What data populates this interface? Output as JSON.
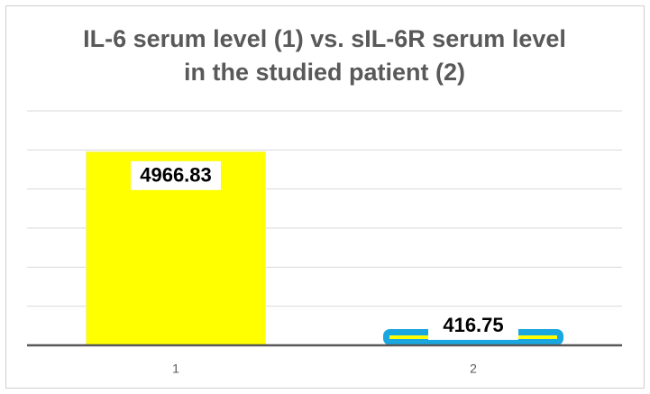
{
  "chart_data": {
    "type": "bar",
    "title": [
      "IL-6 serum level (1) vs. sIL-6R serum level",
      "in the studied patient (2)"
    ],
    "categories": [
      "1",
      "2"
    ],
    "values": [
      4966.83,
      416.75
    ],
    "colors": [
      "#ffff00",
      "#ffff00"
    ],
    "edgecolors": [
      "#f2f2a0",
      "#1aa7e0"
    ],
    "ylim": [
      0,
      6000
    ],
    "yticks": [
      0,
      1000,
      2000,
      3000,
      4000,
      5000,
      6000
    ],
    "grid": true
  }
}
